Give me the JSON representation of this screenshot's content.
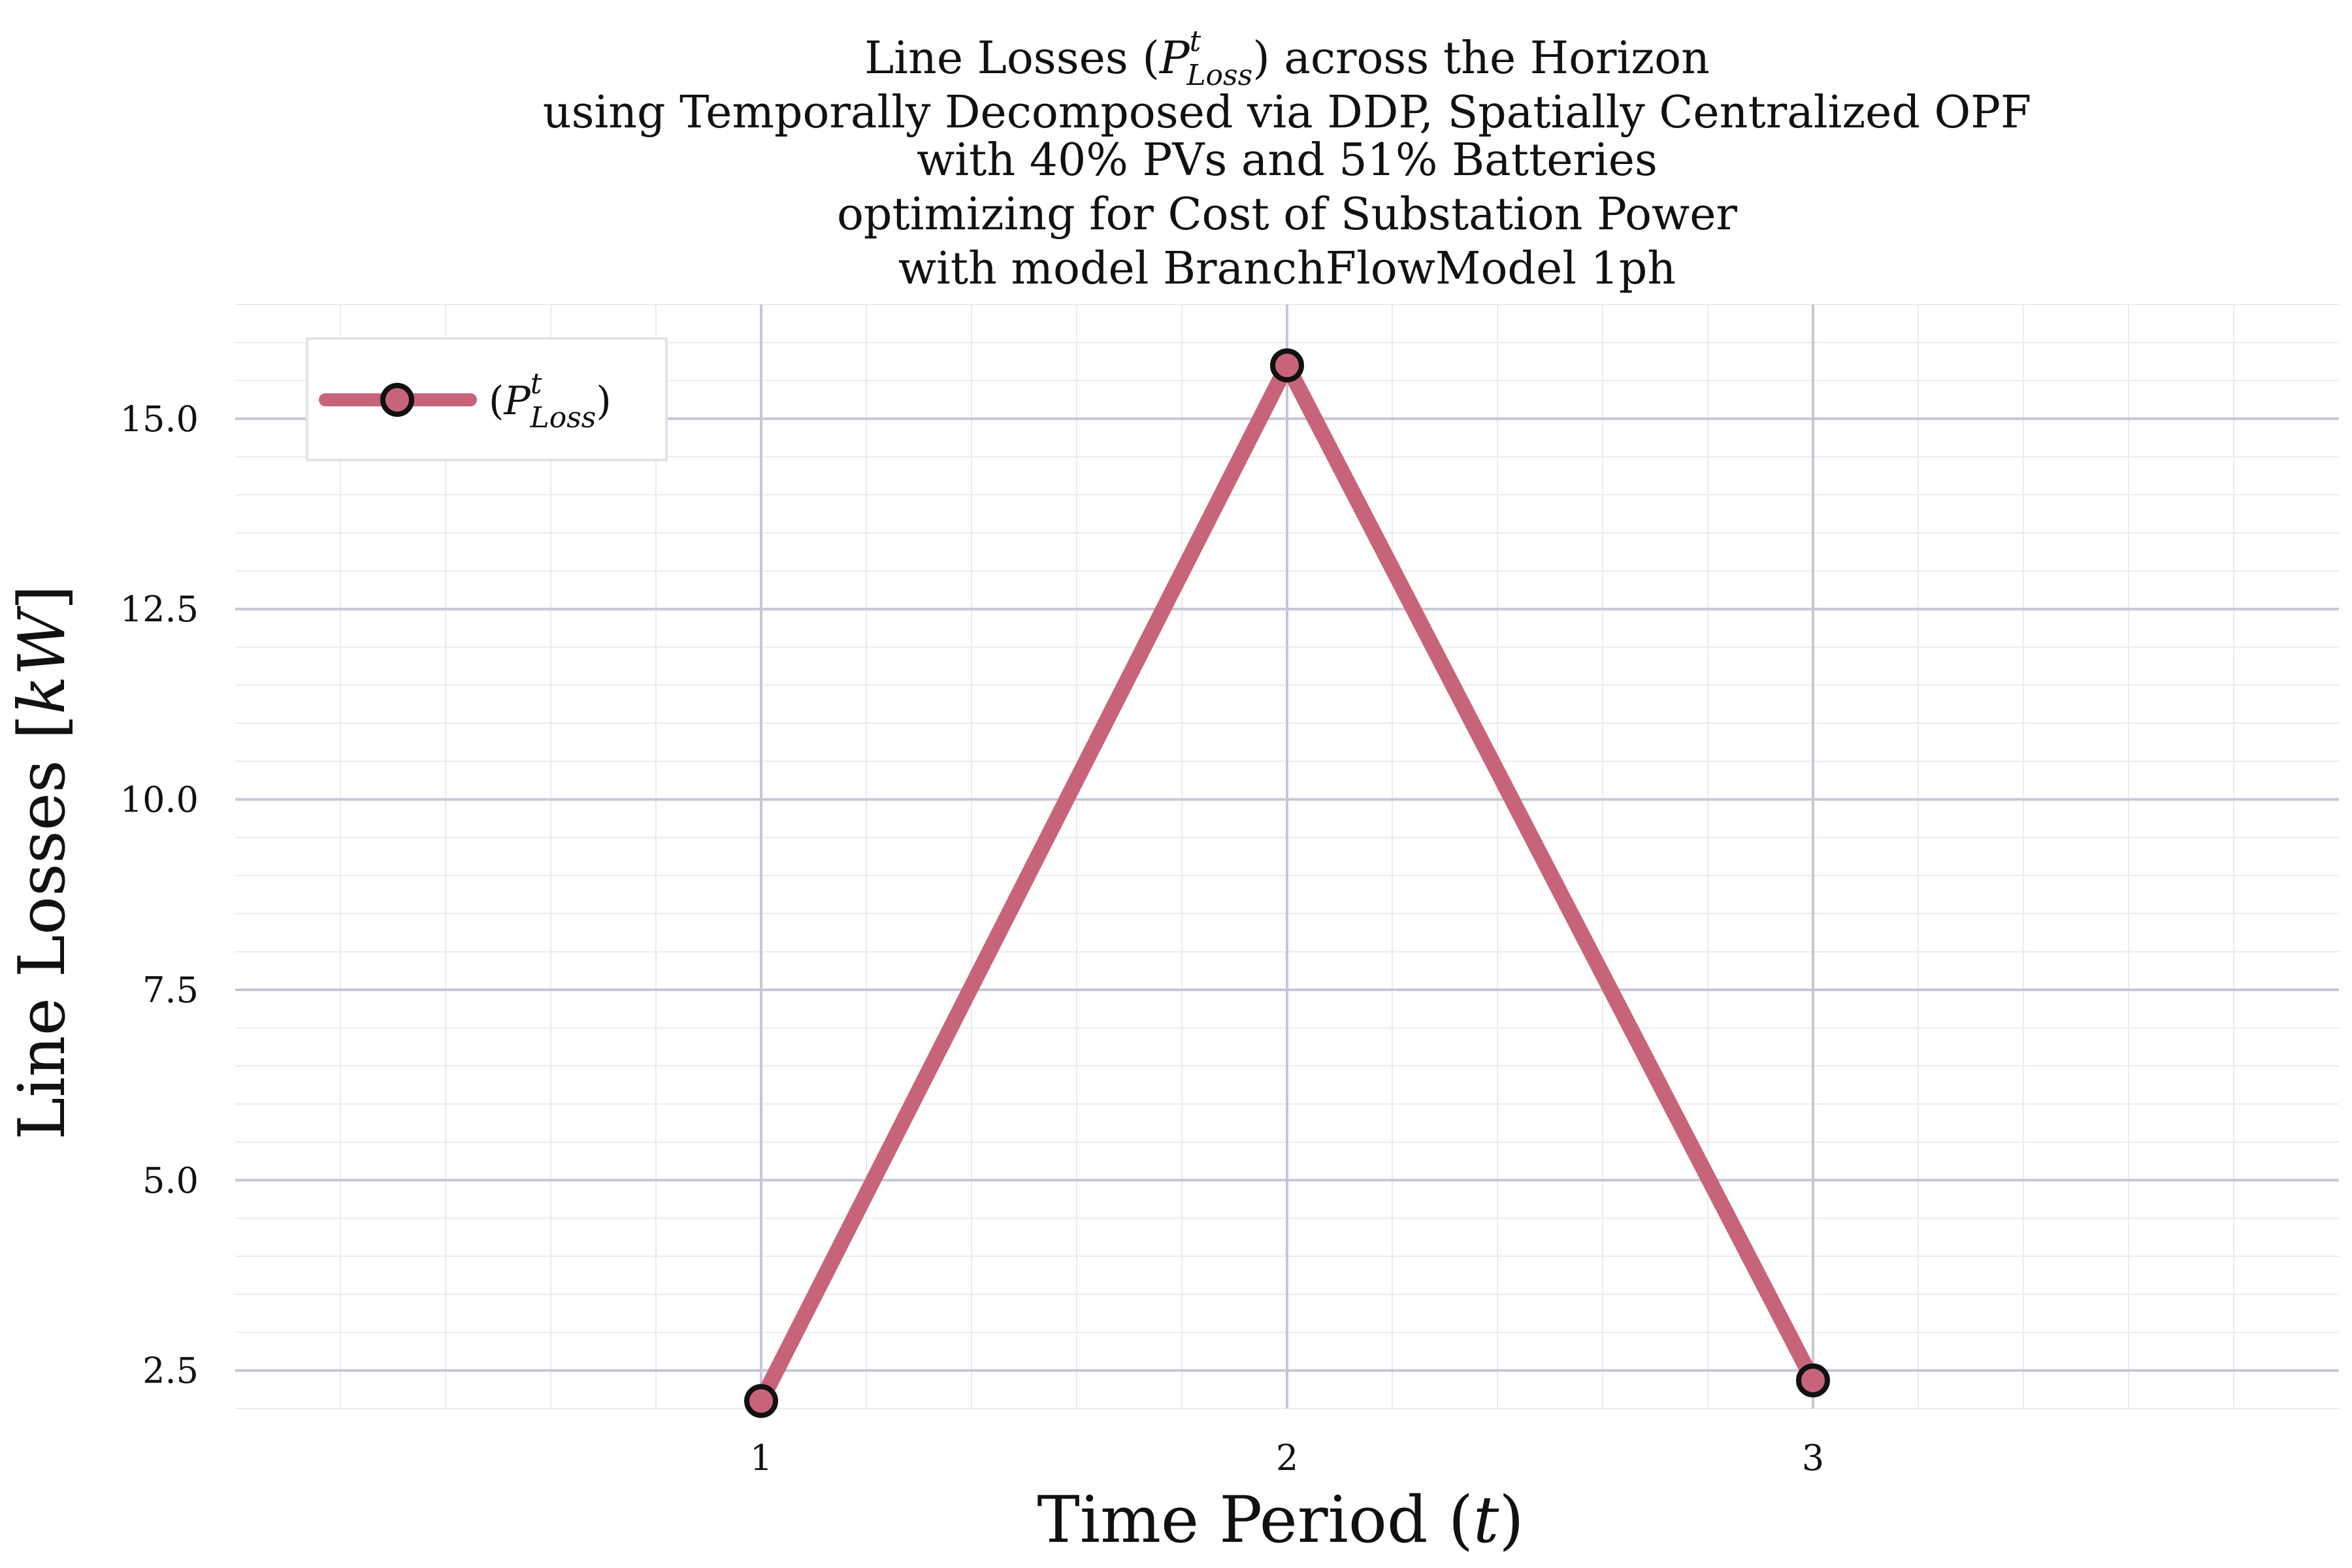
{
  "chart_data": {
    "type": "line",
    "title_lines": [
      "Line Losses (",
      "using Temporally Decomposed via DDP, Spatially Centralized OPF",
      "with 40% PVs and 51% Batteries",
      "optimizing for Cost of Substation Power",
      "with model BranchFlowModel 1ph"
    ],
    "title_first_line": {
      "prefix": "Line Losses (",
      "symbol": "P",
      "sup": "t",
      "sub": "Loss",
      "suffix": ") across the Horizon"
    },
    "xlabel": {
      "text": "Time Period (",
      "var": "t",
      "suffix": ")"
    },
    "ylabel": {
      "text": "Line Losses [",
      "var": "kW",
      "suffix": "]"
    },
    "x": [
      1,
      2,
      3
    ],
    "xticks": [
      1,
      2,
      3
    ],
    "yticks": [
      2.5,
      5.0,
      7.5,
      10.0,
      12.5,
      15.0
    ],
    "ytick_labels": [
      "2.5",
      "5.0",
      "7.5",
      "10.0",
      "12.5",
      "15.0"
    ],
    "xlim": [
      0,
      4
    ],
    "ylim": [
      2.0,
      16.5
    ],
    "grid": true,
    "legend_position": "top-left",
    "series": [
      {
        "name": {
          "open": "(",
          "symbol": "P",
          "sup": "t",
          "sub": "Loss",
          "close": ")"
        },
        "values": [
          2.1,
          15.7,
          2.37
        ],
        "color": "#c8647a",
        "marker_edge": "#111111"
      }
    ]
  }
}
